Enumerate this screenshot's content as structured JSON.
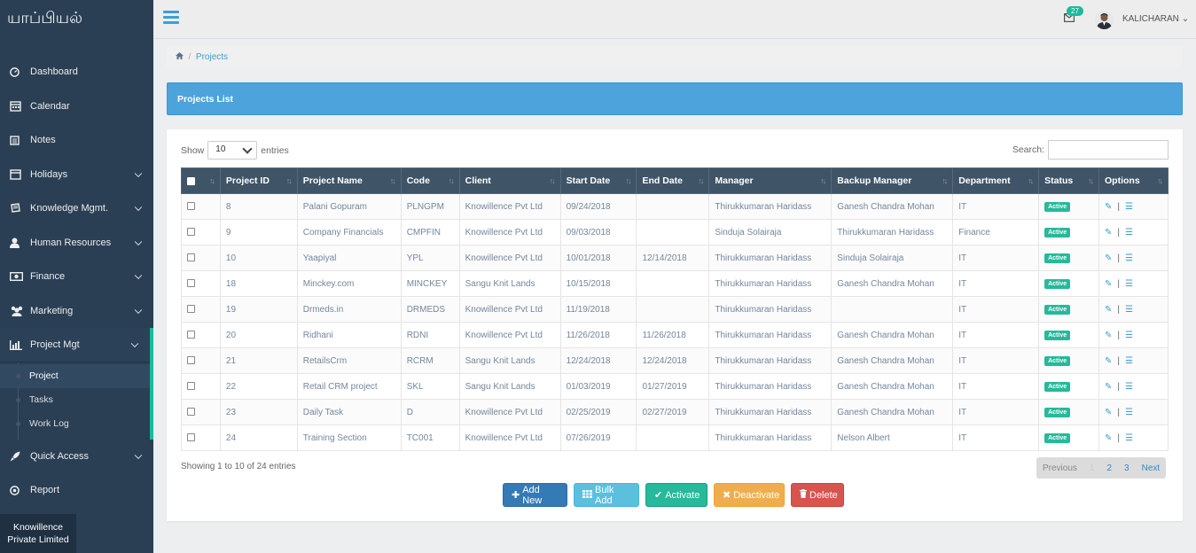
{
  "sidebar": {
    "brand": "யாப்பியல்",
    "items": [
      {
        "label": "Dashboard",
        "icon": "dashboard-icon",
        "chevron": false
      },
      {
        "label": "Calendar",
        "icon": "calendar-icon",
        "chevron": false
      },
      {
        "label": "Notes",
        "icon": "notes-icon",
        "chevron": false
      },
      {
        "label": "Holidays",
        "icon": "holidays-icon",
        "chevron": true
      },
      {
        "label": "Knowledge Mgmt.",
        "icon": "book-icon",
        "chevron": true
      },
      {
        "label": "Human Resources",
        "icon": "user-icon",
        "chevron": true
      },
      {
        "label": "Finance",
        "icon": "money-icon",
        "chevron": true
      },
      {
        "label": "Marketing",
        "icon": "users-icon",
        "chevron": true
      },
      {
        "label": "Project Mgt",
        "icon": "bar-chart-icon",
        "chevron": true
      }
    ],
    "submenu": [
      "Project",
      "Tasks",
      "Work Log"
    ],
    "items_after": [
      {
        "label": "Quick Access",
        "icon": "rocket-icon",
        "chevron": true
      },
      {
        "label": "Report",
        "icon": "report-icon",
        "chevron": false
      }
    ],
    "footer": "Knowillence Private Limited"
  },
  "topnav": {
    "mail_count": "27",
    "username": "KALICHARAN"
  },
  "breadcrumb": {
    "current": "Projects"
  },
  "panel": {
    "title": "Projects List"
  },
  "table_controls": {
    "show_label": "Show",
    "page_size": "10",
    "entries_label": "entries",
    "search_label": "Search:"
  },
  "table": {
    "columns": [
      "Project ID",
      "Project Name",
      "Code",
      "Client",
      "Start Date",
      "End Date",
      "Manager",
      "Backup Manager",
      "Department",
      "Status",
      "Options"
    ],
    "rows": [
      [
        "8",
        "Palani Gopuram",
        "PLNGPM",
        "Knowillence Pvt Ltd",
        "09/24/2018",
        "",
        "Thirukkumaran Haridass",
        "Ganesh Chandra Mohan",
        "IT",
        "Active"
      ],
      [
        "9",
        "Company Financials",
        "CMPFIN",
        "Knowillence Pvt Ltd",
        "09/03/2018",
        "",
        "Sinduja Solairaja",
        "Thirukkumaran Haridass",
        "Finance",
        "Active"
      ],
      [
        "10",
        "Yaapiyal",
        "YPL",
        "Knowillence Pvt Ltd",
        "10/01/2018",
        "12/14/2018",
        "Thirukkumaran Haridass",
        "Sinduja Solairaja",
        "IT",
        "Active"
      ],
      [
        "18",
        "Minckey.com",
        "MINCKEY",
        "Sangu Knit Lands",
        "10/15/2018",
        "",
        "Thirukkumaran Haridass",
        "Ganesh Chandra Mohan",
        "IT",
        "Active"
      ],
      [
        "19",
        "Drmeds.in",
        "DRMEDS",
        "Knowillence Pvt Ltd",
        "11/19/2018",
        "",
        "Thirukkumaran Haridass",
        "",
        "IT",
        "Active"
      ],
      [
        "20",
        "Ridhani",
        "RDNI",
        "Knowillence Pvt Ltd",
        "11/26/2018",
        "11/26/2018",
        "Thirukkumaran Haridass",
        "Ganesh Chandra Mohan",
        "IT",
        "Active"
      ],
      [
        "21",
        "RetailsCrm",
        "RCRM",
        "Sangu Knit Lands",
        "12/24/2018",
        "12/24/2018",
        "Thirukkumaran Haridass",
        "Ganesh Chandra Mohan",
        "IT",
        "Active"
      ],
      [
        "22",
        "Retail CRM project",
        "SKL",
        "Sangu Knit Lands",
        "01/03/2019",
        "01/27/2019",
        "Thirukkumaran Haridass",
        "Ganesh Chandra Mohan",
        "IT",
        "Active"
      ],
      [
        "23",
        "Daily Task",
        "D",
        "Knowillence Pvt Ltd",
        "02/25/2019",
        "02/27/2019",
        "Thirukkumaran Haridass",
        "Ganesh Chandra Mohan",
        "IT",
        "Active"
      ],
      [
        "24",
        "Training Section",
        "TC001",
        "Knowillence Pvt Ltd",
        "07/26/2019",
        "",
        "Thirukkumaran Haridass",
        "Nelson Albert",
        "IT",
        "Active"
      ]
    ]
  },
  "info": "Showing 1 to 10 of 24 entries",
  "pagination": {
    "previous": "Previous",
    "pages": [
      "1",
      "2",
      "3"
    ],
    "next": "Next"
  },
  "actions": {
    "add": "Add New",
    "bulk": "Bulk Add",
    "activate": "Activate",
    "deactivate": "Deactivate",
    "delete": "Delete"
  }
}
